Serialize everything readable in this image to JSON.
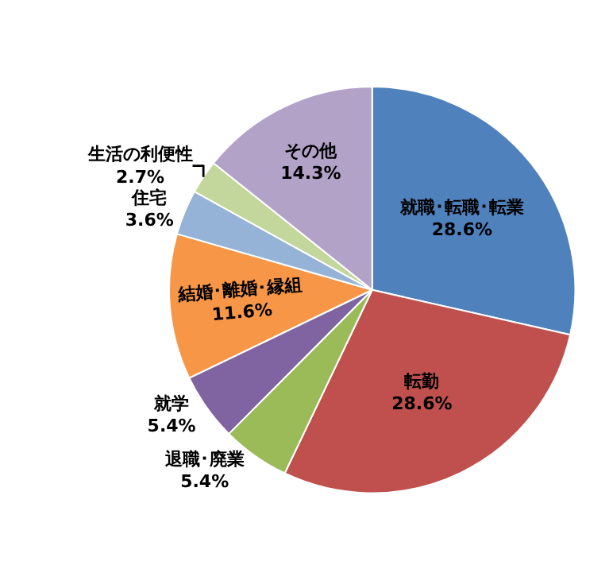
{
  "chart_data": {
    "type": "pie",
    "categories": [
      "就職･転職･転業",
      "転勤",
      "退職･廃業",
      "就学",
      "結婚･離婚･縁組",
      "住宅",
      "生活の利便性",
      "その他"
    ],
    "values": [
      28.6,
      28.6,
      5.4,
      5.4,
      11.6,
      3.6,
      2.7,
      14.3
    ],
    "value_labels": [
      "28.6%",
      "28.6%",
      "5.4%",
      "5.4%",
      "11.6%",
      "3.6%",
      "2.7%",
      "14.3%"
    ],
    "colors": [
      "#4f81bd",
      "#c0504d",
      "#9bbb59",
      "#8064a2",
      "#f79646",
      "#95b3d7",
      "#c3d69b",
      "#b3a2c7"
    ],
    "legend": false
  }
}
